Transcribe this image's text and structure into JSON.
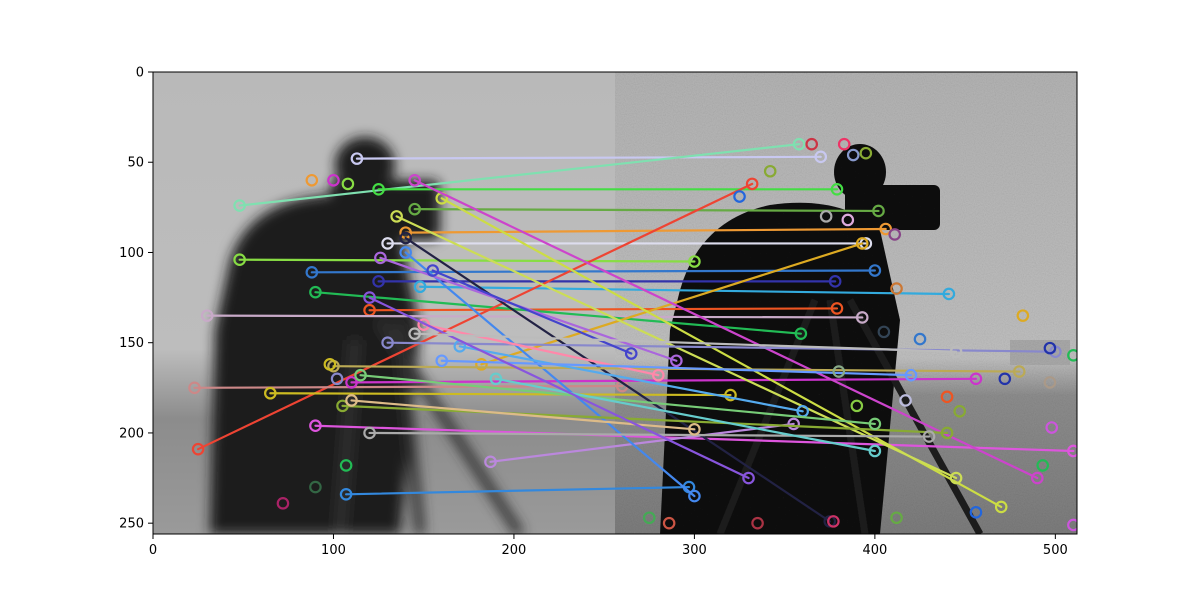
{
  "figure": {
    "x_ticks": [
      "0",
      "100",
      "200",
      "300",
      "400",
      "500"
    ],
    "y_ticks": [
      "0",
      "50",
      "100",
      "150",
      "200",
      "250"
    ]
  },
  "chart_data": {
    "type": "scatter",
    "title": "",
    "xlabel": "",
    "ylabel": "",
    "xlim": [
      0,
      512
    ],
    "ylim": [
      256,
      0
    ],
    "y_axis_inverted": true,
    "grid": false,
    "background_image": "two side-by-side grayscale cameraman photos; left blurred, right noisy/sharp",
    "left_image_width": 256,
    "keypoint_marker": "hollow circle",
    "matches": [
      {
        "x1": 113,
        "y1": 48,
        "x2": 370,
        "y2": 47,
        "color": "#c8c8f0"
      },
      {
        "x1": 48,
        "y1": 74,
        "x2": 358,
        "y2": 40,
        "color": "#7fe0b0"
      },
      {
        "x1": 125,
        "y1": 65,
        "x2": 379,
        "y2": 65,
        "color": "#44dd44"
      },
      {
        "x1": 145,
        "y1": 76,
        "x2": 402,
        "y2": 77,
        "color": "#66aa44"
      },
      {
        "x1": 140,
        "y1": 89,
        "x2": 406,
        "y2": 87,
        "color": "#ee9933"
      },
      {
        "x1": 130,
        "y1": 95,
        "x2": 395,
        "y2": 95,
        "color": "#ddddee"
      },
      {
        "x1": 48,
        "y1": 104,
        "x2": 300,
        "y2": 105,
        "color": "#88dd44"
      },
      {
        "x1": 88,
        "y1": 111,
        "x2": 400,
        "y2": 110,
        "color": "#3377cc"
      },
      {
        "x1": 125,
        "y1": 116,
        "x2": 378,
        "y2": 116,
        "color": "#3333aa"
      },
      {
        "x1": 148,
        "y1": 119,
        "x2": 441,
        "y2": 123,
        "color": "#33aadd"
      },
      {
        "x1": 120,
        "y1": 132,
        "x2": 379,
        "y2": 131,
        "color": "#ee5522"
      },
      {
        "x1": 30,
        "y1": 135,
        "x2": 393,
        "y2": 136,
        "color": "#c8aac8"
      },
      {
        "x1": 90,
        "y1": 122,
        "x2": 359,
        "y2": 145,
        "color": "#22bb55"
      },
      {
        "x1": 25,
        "y1": 209,
        "x2": 332,
        "y2": 62,
        "color": "#ee4433"
      },
      {
        "x1": 182,
        "y1": 162,
        "x2": 393,
        "y2": 95,
        "color": "#ddaa22"
      },
      {
        "x1": 23,
        "y1": 175,
        "x2": 260,
        "y2": 174,
        "color": "#cc8888"
      },
      {
        "x1": 65,
        "y1": 178,
        "x2": 320,
        "y2": 179,
        "color": "#ccbb22"
      },
      {
        "x1": 110,
        "y1": 172,
        "x2": 456,
        "y2": 170,
        "color": "#cc33cc"
      },
      {
        "x1": 107,
        "y1": 234,
        "x2": 297,
        "y2": 230,
        "color": "#3388dd"
      },
      {
        "x1": 90,
        "y1": 196,
        "x2": 510,
        "y2": 210,
        "color": "#dd55dd"
      },
      {
        "x1": 187,
        "y1": 216,
        "x2": 355,
        "y2": 195,
        "color": "#bb88dd"
      },
      {
        "x1": 160,
        "y1": 70,
        "x2": 470,
        "y2": 241,
        "color": "#ccdd44"
      },
      {
        "x1": 145,
        "y1": 60,
        "x2": 490,
        "y2": 225,
        "color": "#cc44cc"
      },
      {
        "x1": 140,
        "y1": 92,
        "x2": 375,
        "y2": 249,
        "color": "#222244"
      },
      {
        "x1": 140,
        "y1": 100,
        "x2": 300,
        "y2": 235,
        "color": "#4488ee"
      },
      {
        "x1": 135,
        "y1": 80,
        "x2": 445,
        "y2": 225,
        "color": "#ccdd55"
      },
      {
        "x1": 130,
        "y1": 150,
        "x2": 500,
        "y2": 155,
        "color": "#8888cc"
      },
      {
        "x1": 100,
        "y1": 163,
        "x2": 480,
        "y2": 166,
        "color": "#bbaa55"
      },
      {
        "x1": 105,
        "y1": 185,
        "x2": 440,
        "y2": 200,
        "color": "#88aa33"
      },
      {
        "x1": 120,
        "y1": 200,
        "x2": 430,
        "y2": 202,
        "color": "#aaaaaa"
      },
      {
        "x1": 150,
        "y1": 140,
        "x2": 280,
        "y2": 168,
        "color": "#ff88aa"
      },
      {
        "x1": 170,
        "y1": 152,
        "x2": 360,
        "y2": 188,
        "color": "#55aaee"
      },
      {
        "x1": 110,
        "y1": 182,
        "x2": 300,
        "y2": 198,
        "color": "#ddbb88"
      },
      {
        "x1": 126,
        "y1": 103,
        "x2": 290,
        "y2": 160,
        "color": "#aa66dd"
      },
      {
        "x1": 115,
        "y1": 168,
        "x2": 400,
        "y2": 195,
        "color": "#77cc77"
      },
      {
        "x1": 190,
        "y1": 170,
        "x2": 400,
        "y2": 210,
        "color": "#66cccc"
      },
      {
        "x1": 155,
        "y1": 110,
        "x2": 265,
        "y2": 156,
        "color": "#4444cc"
      },
      {
        "x1": 160,
        "y1": 160,
        "x2": 420,
        "y2": 168,
        "color": "#6699ff"
      },
      {
        "x1": 120,
        "y1": 125,
        "x2": 330,
        "y2": 225,
        "color": "#8855dd"
      },
      {
        "x1": 145,
        "y1": 145,
        "x2": 445,
        "y2": 155,
        "color": "#bbbbbb"
      }
    ],
    "unmatched_keypoints": [
      {
        "x": 88,
        "y": 60,
        "color": "#ee9933"
      },
      {
        "x": 100,
        "y": 60,
        "color": "#cc33cc"
      },
      {
        "x": 108,
        "y": 62,
        "color": "#88dd44"
      },
      {
        "x": 72,
        "y": 239,
        "color": "#aa2266"
      },
      {
        "x": 90,
        "y": 230,
        "color": "#336644"
      },
      {
        "x": 107,
        "y": 218,
        "color": "#22bb55"
      },
      {
        "x": 98,
        "y": 162,
        "color": "#ccbb22"
      },
      {
        "x": 102,
        "y": 170,
        "color": "#8888cc"
      },
      {
        "x": 365,
        "y": 40,
        "color": "#cc3344"
      },
      {
        "x": 383,
        "y": 40,
        "color": "#ee3366"
      },
      {
        "x": 388,
        "y": 46,
        "color": "#8899cc"
      },
      {
        "x": 395,
        "y": 45,
        "color": "#88aa33"
      },
      {
        "x": 411,
        "y": 90,
        "color": "#884488"
      },
      {
        "x": 412,
        "y": 120,
        "color": "#cc7733"
      },
      {
        "x": 425,
        "y": 148,
        "color": "#3377cc"
      },
      {
        "x": 447,
        "y": 188,
        "color": "#88aa33"
      },
      {
        "x": 482,
        "y": 135,
        "color": "#ddaa22"
      },
      {
        "x": 497,
        "y": 153,
        "color": "#2233aa"
      },
      {
        "x": 510,
        "y": 157,
        "color": "#22bb55"
      },
      {
        "x": 497,
        "y": 172,
        "color": "#aa9988"
      },
      {
        "x": 498,
        "y": 197,
        "color": "#cc55dd"
      },
      {
        "x": 493,
        "y": 218,
        "color": "#22bb55"
      },
      {
        "x": 510,
        "y": 251,
        "color": "#cc55dd"
      },
      {
        "x": 456,
        "y": 244,
        "color": "#2266dd"
      },
      {
        "x": 412,
        "y": 247,
        "color": "#66aa44"
      },
      {
        "x": 377,
        "y": 249,
        "color": "#cc3366"
      },
      {
        "x": 335,
        "y": 250,
        "color": "#aa3344"
      },
      {
        "x": 286,
        "y": 250,
        "color": "#cc5544"
      },
      {
        "x": 275,
        "y": 247,
        "color": "#44aa55"
      },
      {
        "x": 325,
        "y": 69,
        "color": "#2266dd"
      },
      {
        "x": 342,
        "y": 55,
        "color": "#88aa33"
      },
      {
        "x": 373,
        "y": 80,
        "color": "#aaaaaa"
      },
      {
        "x": 385,
        "y": 82,
        "color": "#ddaadd"
      },
      {
        "x": 380,
        "y": 166,
        "color": "#88aa88"
      },
      {
        "x": 390,
        "y": 185,
        "color": "#88cc44"
      },
      {
        "x": 405,
        "y": 144,
        "color": "#334455"
      },
      {
        "x": 417,
        "y": 182,
        "color": "#bbbbdd"
      },
      {
        "x": 440,
        "y": 180,
        "color": "#ee5522"
      },
      {
        "x": 472,
        "y": 170,
        "color": "#2233aa"
      }
    ]
  }
}
